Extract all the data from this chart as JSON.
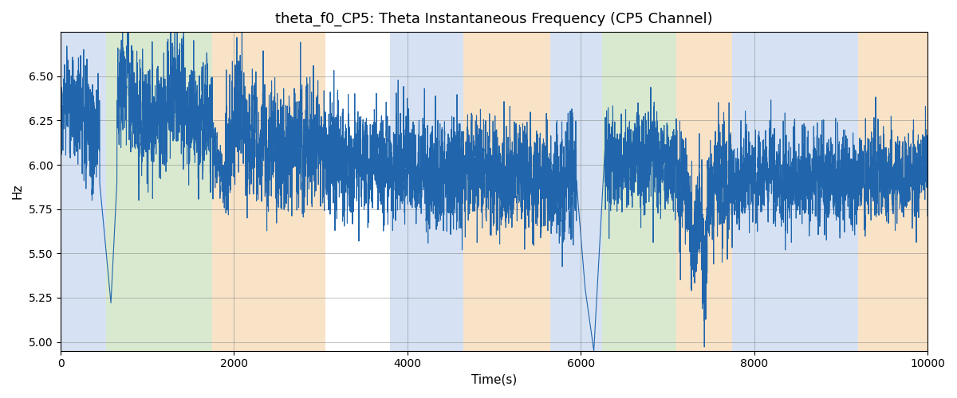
{
  "title": "theta_f0_CP5: Theta Instantaneous Frequency (CP5 Channel)",
  "xlabel": "Time(s)",
  "ylabel": "Hz",
  "xlim": [
    0,
    10000
  ],
  "ylim": [
    4.95,
    6.75
  ],
  "yticks": [
    5.0,
    5.25,
    5.5,
    5.75,
    6.0,
    6.25,
    6.5
  ],
  "xticks": [
    0,
    2000,
    4000,
    6000,
    8000,
    10000
  ],
  "line_color": "#2166ac",
  "line_width": 0.8,
  "background_color": "#ffffff",
  "bg_regions": [
    {
      "xmin": 0,
      "xmax": 520,
      "color": "#aec6e8",
      "alpha": 0.5
    },
    {
      "xmin": 520,
      "xmax": 1750,
      "color": "#b5d5a0",
      "alpha": 0.5
    },
    {
      "xmin": 1750,
      "xmax": 3050,
      "color": "#f5c990",
      "alpha": 0.5
    },
    {
      "xmin": 3800,
      "xmax": 4650,
      "color": "#aec6e8",
      "alpha": 0.5
    },
    {
      "xmin": 4650,
      "xmax": 5650,
      "color": "#f5c990",
      "alpha": 0.5
    },
    {
      "xmin": 5650,
      "xmax": 5950,
      "color": "#aec6e8",
      "alpha": 0.5
    },
    {
      "xmin": 5950,
      "xmax": 6250,
      "color": "#aec6e8",
      "alpha": 0.5
    },
    {
      "xmin": 6250,
      "xmax": 7100,
      "color": "#b5d5a0",
      "alpha": 0.5
    },
    {
      "xmin": 7100,
      "xmax": 7750,
      "color": "#f5c990",
      "alpha": 0.5
    },
    {
      "xmin": 7750,
      "xmax": 9200,
      "color": "#aec6e8",
      "alpha": 0.5
    },
    {
      "xmin": 9200,
      "xmax": 10000,
      "color": "#f5c990",
      "alpha": 0.5
    }
  ],
  "signal_seed": 99
}
